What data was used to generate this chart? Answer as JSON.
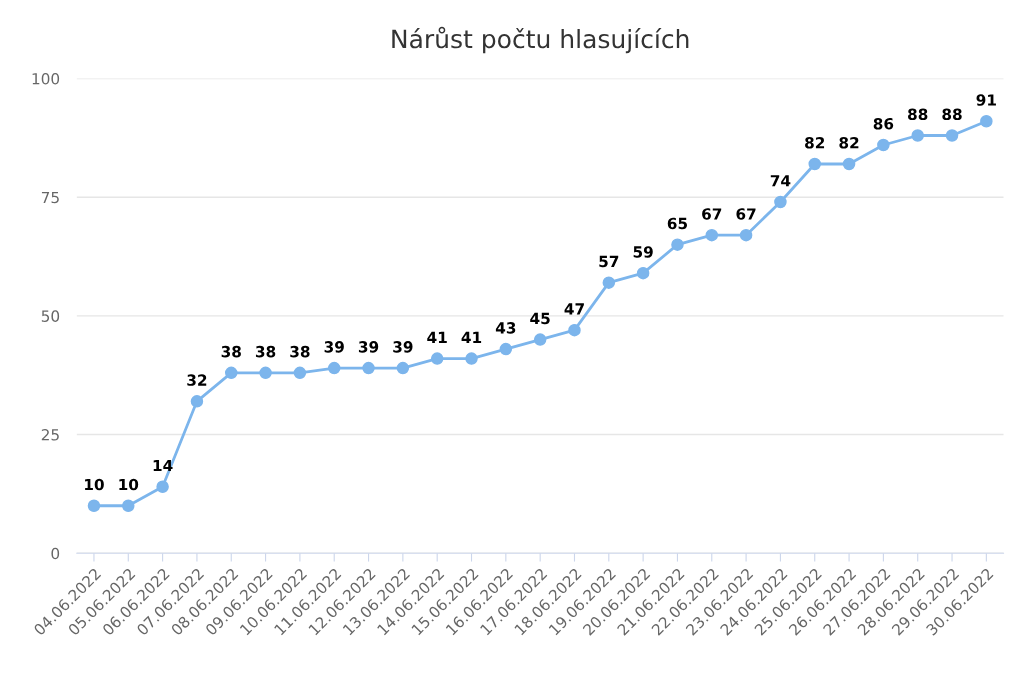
{
  "chart_data": {
    "type": "line",
    "title": "Nárůst počtu hlasujících",
    "categories": [
      "04.06.2022",
      "05.06.2022",
      "06.06.2022",
      "07.06.2022",
      "08.06.2022",
      "09.06.2022",
      "10.06.2022",
      "11.06.2022",
      "12.06.2022",
      "13.06.2022",
      "14.06.2022",
      "15.06.2022",
      "16.06.2022",
      "17.06.2022",
      "18.06.2022",
      "19.06.2022",
      "20.06.2022",
      "21.06.2022",
      "22.06.2022",
      "23.06.2022",
      "24.06.2022",
      "25.06.2022",
      "26.06.2022",
      "27.06.2022",
      "28.06.2022",
      "29.06.2022",
      "30.06.2022"
    ],
    "series": [
      {
        "color": "#7cb5ec",
        "values": [
          10,
          10,
          14,
          32,
          38,
          38,
          38,
          39,
          39,
          39,
          41,
          41,
          43,
          45,
          47,
          57,
          59,
          65,
          67,
          67,
          74,
          82,
          82,
          86,
          88,
          88,
          91
        ]
      }
    ],
    "ylim": [
      0,
      100
    ],
    "yticks": [
      0,
      25,
      50,
      75,
      100
    ],
    "grid": "y",
    "marker": "circle",
    "line_style": "solid",
    "data_labels": true,
    "legend": false
  }
}
